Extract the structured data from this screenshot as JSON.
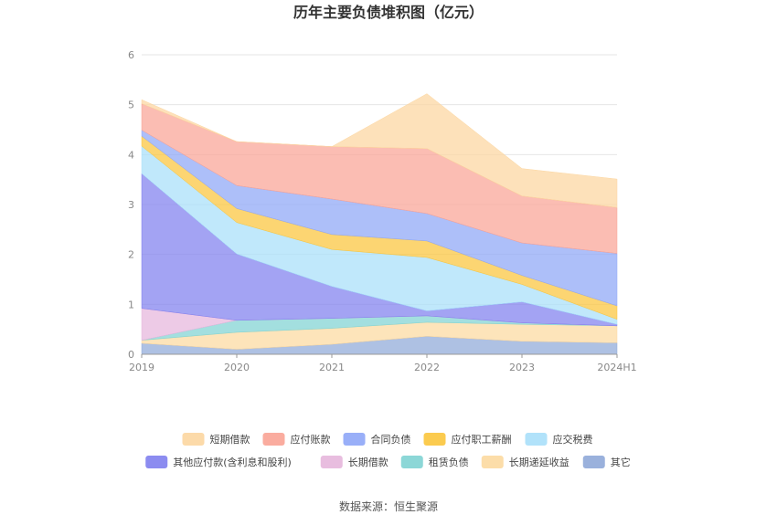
{
  "chart_data": {
    "type": "area",
    "stacked": true,
    "title": "历年主要负债堆积图（亿元）",
    "categories": [
      "2019",
      "2020",
      "2021",
      "2022",
      "2023",
      "2024H1"
    ],
    "ylim": [
      0,
      6
    ],
    "yticks": [
      0,
      1,
      2,
      3,
      4,
      5,
      6
    ],
    "grid": true,
    "legend_position": "bottom",
    "series": [
      {
        "name": "其它",
        "color": "#8fa9d8",
        "values": [
          0.22,
          0.1,
          0.2,
          0.36,
          0.26,
          0.23
        ]
      },
      {
        "name": "长期递延收益",
        "color": "#fcd9a0",
        "values": [
          0.06,
          0.34,
          0.32,
          0.28,
          0.34,
          0.34
        ]
      },
      {
        "name": "租赁负债",
        "color": "#7fd3d3",
        "values": [
          0.0,
          0.24,
          0.2,
          0.13,
          0.03,
          0.0
        ]
      },
      {
        "name": "长期借款",
        "color": "#e6b6dc",
        "values": [
          0.64,
          0.0,
          0.0,
          0.0,
          0.0,
          0.0
        ]
      },
      {
        "name": "其他应付款(含利息和股利)",
        "color": "#7f7fee",
        "values": [
          2.7,
          1.33,
          0.64,
          0.1,
          0.42,
          0.03
        ]
      },
      {
        "name": "应交税费",
        "color": "#a8dffa",
        "values": [
          0.55,
          0.63,
          0.74,
          1.07,
          0.35,
          0.1
        ]
      },
      {
        "name": "应付职工薪酬",
        "color": "#fbc53c",
        "values": [
          0.2,
          0.28,
          0.3,
          0.33,
          0.18,
          0.27
        ]
      },
      {
        "name": "合同负债",
        "color": "#8ea6f7",
        "values": [
          0.12,
          0.46,
          0.71,
          0.55,
          0.65,
          1.05
        ]
      },
      {
        "name": "应付账款",
        "color": "#f9a395",
        "values": [
          0.53,
          0.88,
          1.05,
          1.3,
          0.94,
          0.92
        ]
      },
      {
        "name": "短期借款",
        "color": "#fcd6a0",
        "values": [
          0.08,
          0.0,
          0.0,
          1.1,
          0.55,
          0.57
        ]
      }
    ],
    "legend_order": [
      "短期借款",
      "应付账款",
      "合同负债",
      "应付职工薪酬",
      "应交税费",
      "其他应付款(含利息和股利)",
      "长期借款",
      "租赁负债",
      "长期递延收益",
      "其它"
    ]
  },
  "source_text": "数据来源：恒生聚源"
}
